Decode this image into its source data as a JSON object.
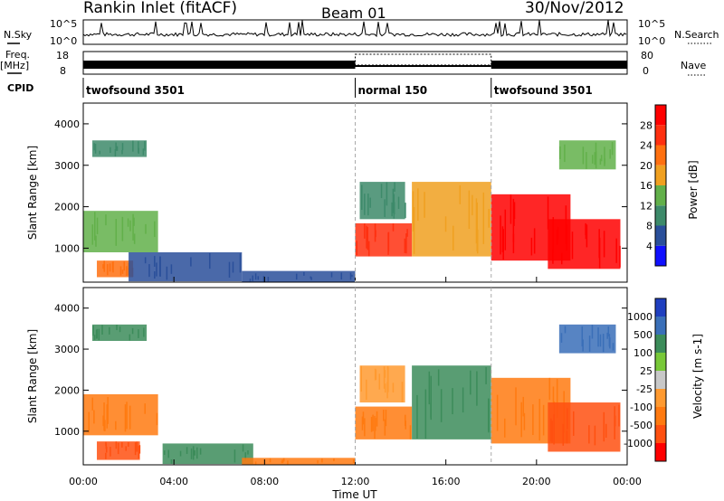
{
  "header": {
    "title": "Rankin Inlet (fitACF)",
    "beam": "Beam 01",
    "date": "30/Nov/2012"
  },
  "side_labels": {
    "nsky": "N.Sky",
    "freq_top": "Freq.",
    "freq_unit": "[MHz]",
    "cpid": "CPID",
    "nsearch": "N.Search",
    "nave": "Nave"
  },
  "nsky_panel": {
    "left_ticks": [
      "10^5",
      "10^0"
    ],
    "right_ticks": [
      "10^5",
      "10^0"
    ]
  },
  "freq_panel": {
    "left_ticks": [
      "18",
      "8"
    ],
    "right_ticks": [
      "80",
      "0"
    ]
  },
  "cpid_bar": {
    "segments": [
      {
        "label": "twofsound 3501",
        "start_h": 0,
        "end_h": 12.0
      },
      {
        "label": "normal 150",
        "start_h": 12.0,
        "end_h": 18.0
      },
      {
        "label": "twofsound 3501",
        "start_h": 18.0,
        "end_h": 24
      }
    ]
  },
  "colors": {
    "power_scale": [
      "#1010ff",
      "#2a4f9a",
      "#3d8a6a",
      "#62b04a",
      "#f0a020",
      "#ff7010",
      "#ff3010",
      "#ff0000"
    ],
    "velocity_scale": [
      "#1f3fbf",
      "#3a6fb8",
      "#3c8c5a",
      "#78c838",
      "#c8c8c8",
      "#ff9a30",
      "#ff7a10",
      "#ff5010",
      "#ff0000"
    ]
  },
  "chart_data": [
    {
      "type": "heatmap",
      "title": "",
      "ylabel": "Slant Range [km]",
      "xlabel": "",
      "xlim_hours": [
        0,
        24
      ],
      "ylim_km": [
        180,
        4500
      ],
      "yticks": [
        1000,
        2000,
        3000,
        4000
      ],
      "colorbar": {
        "label": "Power [dB]",
        "range": [
          0,
          32
        ],
        "ticks": [
          4,
          8,
          12,
          16,
          20,
          24,
          28
        ]
      },
      "echo_regions": [
        {
          "t0": 0.0,
          "t1": 3.3,
          "r0": 900,
          "r1": 1900,
          "value": 14
        },
        {
          "t0": 0.6,
          "t1": 2.2,
          "r0": 300,
          "r1": 700,
          "value": 22
        },
        {
          "t0": 0.4,
          "t1": 2.8,
          "r0": 3200,
          "r1": 3600,
          "value": 10
        },
        {
          "t0": 2.0,
          "t1": 7.0,
          "r0": 200,
          "r1": 900,
          "value": 6
        },
        {
          "t0": 7.0,
          "t1": 12.0,
          "r0": 180,
          "r1": 450,
          "value": 4
        },
        {
          "t0": 12.0,
          "t1": 14.5,
          "r0": 800,
          "r1": 1600,
          "value": 24
        },
        {
          "t0": 12.2,
          "t1": 14.2,
          "r0": 1700,
          "r1": 2600,
          "value": 8
        },
        {
          "t0": 14.5,
          "t1": 18.0,
          "r0": 800,
          "r1": 2600,
          "value": 18
        },
        {
          "t0": 18.0,
          "t1": 21.5,
          "r0": 700,
          "r1": 2300,
          "value": 30
        },
        {
          "t0": 20.5,
          "t1": 23.7,
          "r0": 500,
          "r1": 1700,
          "value": 28
        },
        {
          "t0": 21.0,
          "t1": 23.5,
          "r0": 2900,
          "r1": 3600,
          "value": 12
        }
      ]
    },
    {
      "type": "heatmap",
      "title": "",
      "ylabel": "Slant Range [km]",
      "xlabel": "Time UT",
      "xlim_hours": [
        0,
        24
      ],
      "ylim_km": [
        180,
        4500
      ],
      "yticks": [
        1000,
        2000,
        3000,
        4000
      ],
      "xticks": [
        "00:00",
        "04:00",
        "08:00",
        "12:00",
        "16:00",
        "20:00",
        "00:00"
      ],
      "colorbar": {
        "label": "Velocity [m s-1]",
        "ticks": [
          "1000",
          "500",
          "100",
          "25",
          "-25",
          "-100",
          "-500",
          "-1000"
        ]
      },
      "echo_regions": [
        {
          "t0": 0.0,
          "t1": 3.3,
          "r0": 900,
          "r1": 1900,
          "value": -100
        },
        {
          "t0": 0.6,
          "t1": 2.5,
          "r0": 300,
          "r1": 750,
          "value": -300
        },
        {
          "t0": 0.4,
          "t1": 2.8,
          "r0": 3200,
          "r1": 3600,
          "value": 200
        },
        {
          "t0": 3.5,
          "t1": 7.5,
          "r0": 200,
          "r1": 700,
          "value": 150
        },
        {
          "t0": 7.0,
          "t1": 12.0,
          "r0": 180,
          "r1": 350,
          "value": -150
        },
        {
          "t0": 12.0,
          "t1": 14.5,
          "r0": 800,
          "r1": 1600,
          "value": -200
        },
        {
          "t0": 12.2,
          "t1": 14.2,
          "r0": 1700,
          "r1": 2600,
          "value": -80
        },
        {
          "t0": 14.5,
          "t1": 18.0,
          "r0": 800,
          "r1": 2600,
          "value": 120
        },
        {
          "t0": 18.0,
          "t1": 21.5,
          "r0": 700,
          "r1": 2300,
          "value": -200
        },
        {
          "t0": 20.5,
          "t1": 23.7,
          "r0": 500,
          "r1": 1700,
          "value": -400
        },
        {
          "t0": 21.0,
          "t1": 23.5,
          "r0": 2900,
          "r1": 3600,
          "value": 300
        }
      ]
    }
  ]
}
